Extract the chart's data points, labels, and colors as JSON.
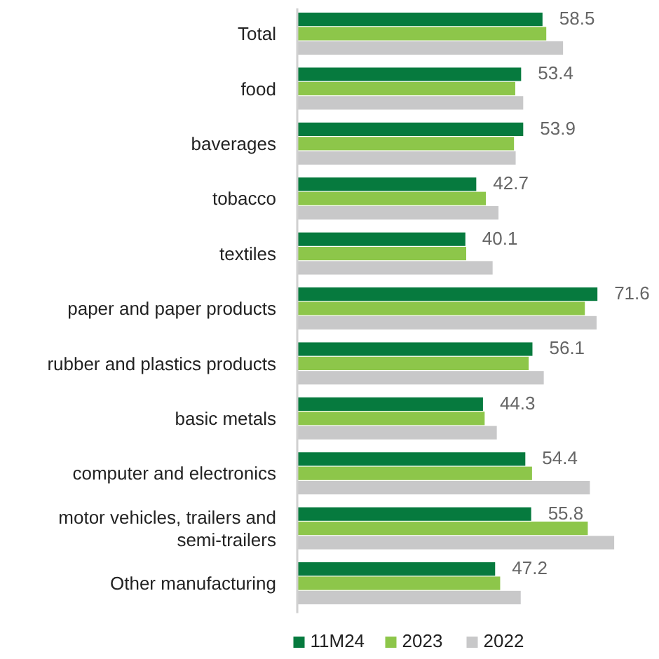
{
  "chart_data": {
    "type": "bar",
    "orientation": "horizontal",
    "categories": [
      "Total",
      "food",
      "baverages",
      "tobacco",
      "textiles",
      "paper and paper products",
      "rubber and plastics products",
      "basic metals",
      "computer and electronics",
      "motor vehicles, trailers and semi-trailers",
      "Other manufacturing"
    ],
    "series": [
      {
        "name": "11M24",
        "color": "#067a3e",
        "values": [
          58.5,
          53.4,
          53.9,
          42.7,
          40.1,
          71.6,
          56.1,
          44.3,
          54.4,
          55.8,
          47.2
        ],
        "value_labels": [
          "58.5",
          "53.4",
          "53.9",
          "42.7",
          "40.1",
          "71.6",
          "56.1",
          "44.3",
          "54.4",
          "55.8",
          "47.2"
        ]
      },
      {
        "name": "2023",
        "color": "#8dc64a",
        "values": [
          59.4,
          52.0,
          51.7,
          45.0,
          40.3,
          68.6,
          55.2,
          44.7,
          56.0,
          69.3,
          48.4
        ]
      },
      {
        "name": "2022",
        "color": "#c8c8c9",
        "values": [
          63.4,
          53.9,
          52.1,
          48.0,
          46.6,
          71.4,
          58.8,
          47.6,
          69.8,
          75.6,
          53.3
        ]
      }
    ],
    "legend": "bottom"
  }
}
